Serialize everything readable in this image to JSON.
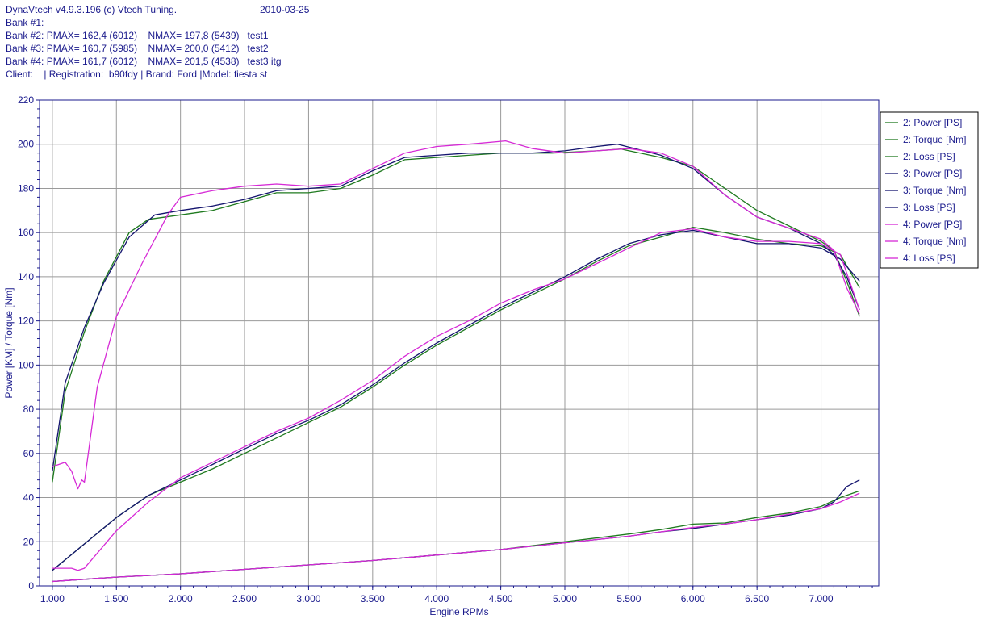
{
  "header": {
    "app_title": "DynaVtech v4.9.3.196 (c) Vtech Tuning.",
    "date": "2010-03-25",
    "lines": [
      "Bank #1:",
      "Bank #2: PMAX= 162,4 (6012)    NMAX= 197,8 (5439)   test1",
      "Bank #3: PMAX= 160,7 (5985)    NMAX= 200,0 (5412)   test2",
      "Bank #4: PMAX= 161,7 (6012)    NMAX= 201,5 (4538)   test3 itg",
      "Client:    | Registration:  b90fdy | Brand: Ford |Model: fiesta st"
    ]
  },
  "colors": {
    "series2": "#1f7a1f",
    "series3": "#14146e",
    "series4": "#d62ad6",
    "axis": "#1a1a8c",
    "grid": "#9a9a9a"
  },
  "chart_data": {
    "type": "line",
    "xlabel": "Engine RPMs",
    "ylabel": "Power [KM] / Torque [Nm]",
    "xlim": [
      900,
      7450
    ],
    "ylim": [
      0,
      220
    ],
    "x_ticks": [
      1000,
      1500,
      2000,
      2500,
      3000,
      3500,
      4000,
      4500,
      5000,
      5500,
      6000,
      6500,
      7000
    ],
    "x_tick_labels": [
      "1.000",
      "1.500",
      "2.000",
      "2.500",
      "3.000",
      "3.500",
      "4.000",
      "4.500",
      "5.000",
      "5.500",
      "6.000",
      "6.500",
      "7.000"
    ],
    "y_ticks": [
      0,
      20,
      40,
      60,
      80,
      100,
      120,
      140,
      160,
      180,
      200,
      220
    ],
    "y_tick_labels": [
      "0",
      "20",
      "40",
      "60",
      "80",
      "100",
      "120",
      "140",
      "160",
      "180",
      "200",
      "220"
    ],
    "grid": true,
    "legend_position": "right",
    "series": [
      {
        "name": "2: Power [PS]",
        "color_key": "series2",
        "x": [
          1000,
          1250,
          1500,
          1750,
          2000,
          2250,
          2500,
          2750,
          3000,
          3250,
          3500,
          3750,
          4000,
          4250,
          4500,
          4750,
          5000,
          5250,
          5500,
          5750,
          6000,
          6250,
          6500,
          6750,
          7000,
          7150,
          7300
        ],
        "y": [
          7,
          19,
          31,
          41,
          47,
          53,
          60,
          67,
          74,
          81,
          90,
          100,
          109,
          117,
          125,
          132,
          139,
          147,
          154,
          158,
          162.4,
          160,
          157,
          155,
          154,
          150,
          135
        ]
      },
      {
        "name": "2: Torque [Nm]",
        "color_key": "series2",
        "x": [
          1000,
          1100,
          1250,
          1400,
          1600,
          1750,
          2000,
          2250,
          2500,
          2750,
          3000,
          3250,
          3500,
          3750,
          4000,
          4250,
          4500,
          4750,
          4900,
          5250,
          5439,
          5750,
          6000,
          6250,
          6500,
          6750,
          7000,
          7100,
          7200,
          7300
        ],
        "y": [
          47,
          88,
          115,
          138,
          160,
          166,
          168,
          170,
          174,
          178,
          178,
          180,
          186,
          193,
          194,
          195,
          196,
          196,
          196,
          197,
          197.8,
          194,
          190,
          180,
          170,
          163,
          156,
          152,
          138,
          122
        ]
      },
      {
        "name": "2: Loss [PS]",
        "color_key": "series2",
        "x": [
          1000,
          1500,
          2000,
          2500,
          3000,
          3500,
          4000,
          4500,
          5000,
          5500,
          5750,
          6000,
          6250,
          6500,
          6750,
          7000,
          7150,
          7300
        ],
        "y": [
          2,
          4,
          5.5,
          7.5,
          9.5,
          11.5,
          14,
          16.5,
          20,
          23.5,
          25.5,
          28,
          28.5,
          31,
          33,
          36,
          40,
          43
        ]
      },
      {
        "name": "3: Power [PS]",
        "color_key": "series3",
        "x": [
          1000,
          1250,
          1500,
          1750,
          2000,
          2250,
          2500,
          2750,
          3000,
          3250,
          3500,
          3750,
          4000,
          4250,
          4500,
          4750,
          5000,
          5250,
          5500,
          5750,
          6000,
          6250,
          6500,
          6750,
          7000,
          7150,
          7300
        ],
        "y": [
          7,
          19,
          31,
          41,
          48,
          55,
          62,
          69,
          75,
          82,
          91,
          101,
          110,
          118,
          126,
          133,
          140,
          148,
          155,
          159,
          161,
          158,
          155,
          155,
          153,
          148,
          138
        ]
      },
      {
        "name": "3: Torque [Nm]",
        "color_key": "series3",
        "x": [
          1000,
          1100,
          1250,
          1400,
          1600,
          1800,
          2000,
          2250,
          2500,
          2750,
          3000,
          3250,
          3500,
          3750,
          4000,
          4250,
          4500,
          4750,
          5000,
          5250,
          5412,
          5750,
          6000,
          6250,
          6500,
          6750,
          7000,
          7100,
          7200,
          7300
        ],
        "y": [
          52,
          92,
          117,
          137,
          158,
          168,
          170,
          172,
          175,
          179,
          180,
          181,
          188,
          194,
          195,
          196,
          196,
          196,
          197,
          199,
          200,
          195,
          189,
          177,
          167,
          162,
          155,
          150,
          140,
          125
        ]
      },
      {
        "name": "3: Loss [PS]",
        "color_key": "series3",
        "x": [
          1000,
          1500,
          2000,
          2500,
          3000,
          3500,
          4000,
          4500,
          5000,
          5500,
          5750,
          6000,
          6250,
          6500,
          6750,
          7000,
          7100,
          7200,
          7300
        ],
        "y": [
          2,
          4,
          5.5,
          7.5,
          9.5,
          11.5,
          14,
          16.5,
          19.5,
          22.5,
          24.5,
          26,
          28,
          30,
          32,
          35,
          38,
          45,
          48
        ]
      },
      {
        "name": "4: Power [PS]",
        "color_key": "series4",
        "x": [
          1000,
          1100,
          1150,
          1200,
          1250,
          1500,
          1750,
          2000,
          2250,
          2500,
          2750,
          3000,
          3250,
          3500,
          3750,
          4000,
          4250,
          4500,
          4750,
          5000,
          5250,
          5500,
          5750,
          6000,
          6250,
          6500,
          6750,
          7000,
          7150,
          7300
        ],
        "y": [
          8,
          8,
          8,
          7,
          8,
          25,
          38,
          49,
          56,
          63,
          70,
          76,
          84,
          93,
          104,
          113,
          120,
          128,
          134,
          139,
          146,
          153,
          160,
          161.7,
          158,
          156,
          156,
          155,
          150,
          125
        ]
      },
      {
        "name": "4: Torque [Nm]",
        "color_key": "series4",
        "x": [
          1000,
          1100,
          1150,
          1180,
          1200,
          1230,
          1250,
          1350,
          1500,
          1700,
          1900,
          2000,
          2250,
          2500,
          2750,
          3000,
          3250,
          3500,
          3750,
          4000,
          4250,
          4538,
          4750,
          5000,
          5250,
          5500,
          5750,
          6000,
          6250,
          6500,
          6750,
          7000,
          7100,
          7200,
          7300
        ],
        "y": [
          54,
          56,
          52,
          47,
          44,
          48,
          47,
          90,
          122,
          146,
          168,
          176,
          179,
          181,
          182,
          181,
          182,
          189,
          196,
          199,
          200,
          201.5,
          198,
          196,
          197,
          198,
          196,
          190,
          177,
          167,
          162,
          157,
          152,
          135,
          123
        ]
      },
      {
        "name": "4: Loss [PS]",
        "color_key": "series4",
        "x": [
          1000,
          1500,
          2000,
          2500,
          3000,
          3500,
          4000,
          4500,
          5000,
          5500,
          5750,
          6000,
          6250,
          6500,
          6750,
          7000,
          7150,
          7300
        ],
        "y": [
          2,
          4,
          5.5,
          7.5,
          9.5,
          11.5,
          14,
          16.5,
          19.5,
          22.5,
          24.5,
          26.5,
          28,
          30,
          32.5,
          35,
          38,
          42
        ]
      }
    ]
  }
}
